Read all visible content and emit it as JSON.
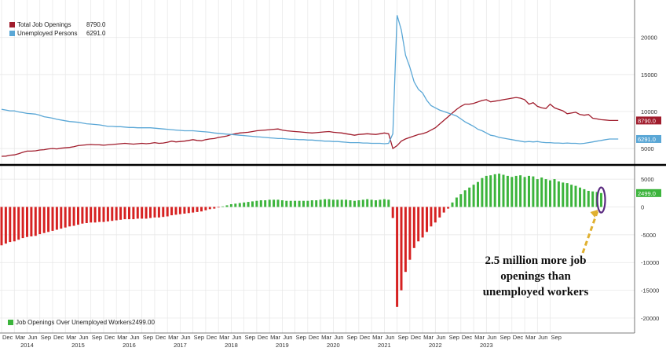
{
  "chart_data": [
    {
      "type": "line",
      "x_start": "2013-12",
      "x_end": "2023-10",
      "ylim": [
        3000,
        24000
      ],
      "yticks": [
        5000,
        10000,
        15000,
        20000
      ],
      "series": [
        {
          "name": "Total Job Openings",
          "legend_value": "8790.0",
          "color": "#a01c2c",
          "values": [
            3950,
            3980,
            4100,
            4150,
            4300,
            4500,
            4650,
            4650,
            4700,
            4800,
            4850,
            4950,
            5000,
            4950,
            5050,
            5100,
            5150,
            5250,
            5400,
            5450,
            5500,
            5550,
            5500,
            5500,
            5450,
            5500,
            5550,
            5600,
            5650,
            5700,
            5650,
            5600,
            5650,
            5700,
            5650,
            5700,
            5800,
            5700,
            5750,
            5850,
            6000,
            5900,
            5950,
            6000,
            6100,
            6200,
            6100,
            6050,
            6200,
            6300,
            6350,
            6500,
            6600,
            6700,
            6900,
            7000,
            7100,
            7150,
            7200,
            7300,
            7400,
            7450,
            7500,
            7550,
            7600,
            7650,
            7500,
            7400,
            7350,
            7300,
            7250,
            7200,
            7150,
            7100,
            7150,
            7200,
            7250,
            7300,
            7200,
            7150,
            7100,
            7000,
            6900,
            6800,
            6900,
            6950,
            7000,
            6950,
            6900,
            7000,
            7100,
            7000,
            5000,
            5400,
            6000,
            6300,
            6500,
            6700,
            6900,
            7000,
            7200,
            7500,
            7800,
            8300,
            8800,
            9300,
            9800,
            10300,
            10700,
            11000,
            11000,
            11100,
            11300,
            11500,
            11600,
            11300,
            11400,
            11500,
            11600,
            11700,
            11800,
            11900,
            11800,
            11600,
            11000,
            11200,
            10700,
            10500,
            10400,
            11000,
            10500,
            10300,
            10100,
            9700,
            9800,
            9900,
            9600,
            9500,
            9600,
            9100,
            9000,
            8900,
            8850,
            8790,
            8790,
            8790
          ]
        },
        {
          "name": "Unemployed Persons",
          "legend_value": "6291.0",
          "color": "#5aa7d6",
          "values": [
            10300,
            10200,
            10100,
            10100,
            9950,
            9850,
            9750,
            9700,
            9650,
            9500,
            9300,
            9200,
            9100,
            8950,
            8850,
            8750,
            8650,
            8600,
            8550,
            8450,
            8350,
            8300,
            8250,
            8200,
            8100,
            8000,
            8000,
            7950,
            7950,
            7900,
            7850,
            7850,
            7800,
            7800,
            7800,
            7800,
            7750,
            7700,
            7650,
            7600,
            7550,
            7500,
            7450,
            7400,
            7400,
            7400,
            7350,
            7300,
            7250,
            7200,
            7100,
            7050,
            7000,
            6950,
            6900,
            6850,
            6800,
            6750,
            6700,
            6650,
            6600,
            6550,
            6500,
            6450,
            6400,
            6350,
            6350,
            6300,
            6250,
            6250,
            6200,
            6200,
            6150,
            6150,
            6100,
            6050,
            6000,
            6000,
            5950,
            5950,
            5900,
            5850,
            5800,
            5800,
            5800,
            5750,
            5750,
            5700,
            5700,
            5700,
            5650,
            5700,
            7000,
            23000,
            21000,
            17600,
            16000,
            14000,
            13000,
            12500,
            11500,
            10800,
            10500,
            10200,
            10000,
            9800,
            9600,
            9400,
            9000,
            8600,
            8300,
            8000,
            7600,
            7400,
            7100,
            6800,
            6700,
            6500,
            6400,
            6300,
            6200,
            6100,
            6000,
            5900,
            5950,
            5900,
            5950,
            5850,
            5800,
            5800,
            5750,
            5750,
            5700,
            5750,
            5700,
            5700,
            5650,
            5700,
            5800,
            5900,
            6000,
            6100,
            6200,
            6291,
            6291,
            6291
          ]
        }
      ],
      "markers": [
        "8790.0",
        "6291.0"
      ],
      "legend_placement": "top-left",
      "grid": true
    },
    {
      "type": "bar",
      "x_start": "2013-12",
      "x_end": "2023-10",
      "ylim": [
        -21000,
        7000
      ],
      "yticks": [
        5000,
        0,
        -5000,
        -10000,
        -15000,
        -20000
      ],
      "series": [
        {
          "name": "Job Openings Over Unemployed Workers",
          "legend_value": "2499.00",
          "positive_color": "#3cb43c",
          "negative_color": "#d62121",
          "values": [
            -6900,
            -6600,
            -6300,
            -6200,
            -5900,
            -5600,
            -5400,
            -5300,
            -5200,
            -4900,
            -4700,
            -4500,
            -4300,
            -4100,
            -3900,
            -3700,
            -3500,
            -3400,
            -3200,
            -3000,
            -2900,
            -2800,
            -2800,
            -2700,
            -2700,
            -2600,
            -2500,
            -2400,
            -2300,
            -2200,
            -2200,
            -2200,
            -2100,
            -2100,
            -2100,
            -2000,
            -1900,
            -1900,
            -1800,
            -1700,
            -1500,
            -1400,
            -1300,
            -1200,
            -1100,
            -1000,
            -900,
            -800,
            -600,
            -400,
            -300,
            -100,
            100,
            300,
            500,
            600,
            700,
            800,
            900,
            1000,
            1100,
            1200,
            1200,
            1300,
            1300,
            1300,
            1200,
            1100,
            1100,
            1100,
            1100,
            1100,
            1100,
            1200,
            1200,
            1300,
            1400,
            1400,
            1300,
            1300,
            1300,
            1300,
            1200,
            1100,
            1200,
            1300,
            1400,
            1300,
            1200,
            1300,
            1400,
            1300,
            -2000,
            -18000,
            -15000,
            -11700,
            -9500,
            -7400,
            -6200,
            -5500,
            -4500,
            -3500,
            -2800,
            -1900,
            -1000,
            -300,
            800,
            1700,
            2300,
            3000,
            3500,
            4000,
            4500,
            5200,
            5600,
            5700,
            5900,
            6000,
            5800,
            5600,
            5400,
            5600,
            5700,
            5400,
            5600,
            5500,
            5000,
            5300,
            5000,
            4800,
            5000,
            4600,
            4400,
            4300,
            4000,
            3800,
            3500,
            3200,
            2900,
            2800,
            2700,
            2499
          ]
        }
      ],
      "marker": "2499.0",
      "legend_placement": "bottom-left",
      "grid": true,
      "annotation": [
        "2.5 million more job",
        "openings than",
        "unemployed workers"
      ]
    }
  ],
  "x_axis": {
    "month_labels": [
      "Dec",
      "Mar",
      "Jun",
      "Sep",
      "Dec",
      "Mar",
      "Jun",
      "Sep",
      "Dec",
      "Mar",
      "Jun",
      "Sep",
      "Dec",
      "Mar",
      "Jun",
      "Sep",
      "Dec",
      "Mar",
      "Jun",
      "Sep",
      "Dec",
      "Mar",
      "Jun",
      "Sep",
      "Dec",
      "Mar",
      "Jun",
      "Sep",
      "Dec",
      "Mar",
      "Jun",
      "Sep",
      "Dec",
      "Mar",
      "Jun",
      "Sep",
      "Dec",
      "Mar",
      "Jun",
      "Sep",
      "Dec",
      "Mar",
      "Jun",
      "Sep"
    ],
    "years": [
      "2014",
      "2015",
      "2016",
      "2017",
      "2018",
      "2019",
      "2020",
      "2021",
      "2022",
      "2023"
    ]
  },
  "colors": {
    "grid": "#e6e6e6",
    "separator": "#000000",
    "arrow": "#e0b030",
    "ellipse": "#5a2a80"
  }
}
